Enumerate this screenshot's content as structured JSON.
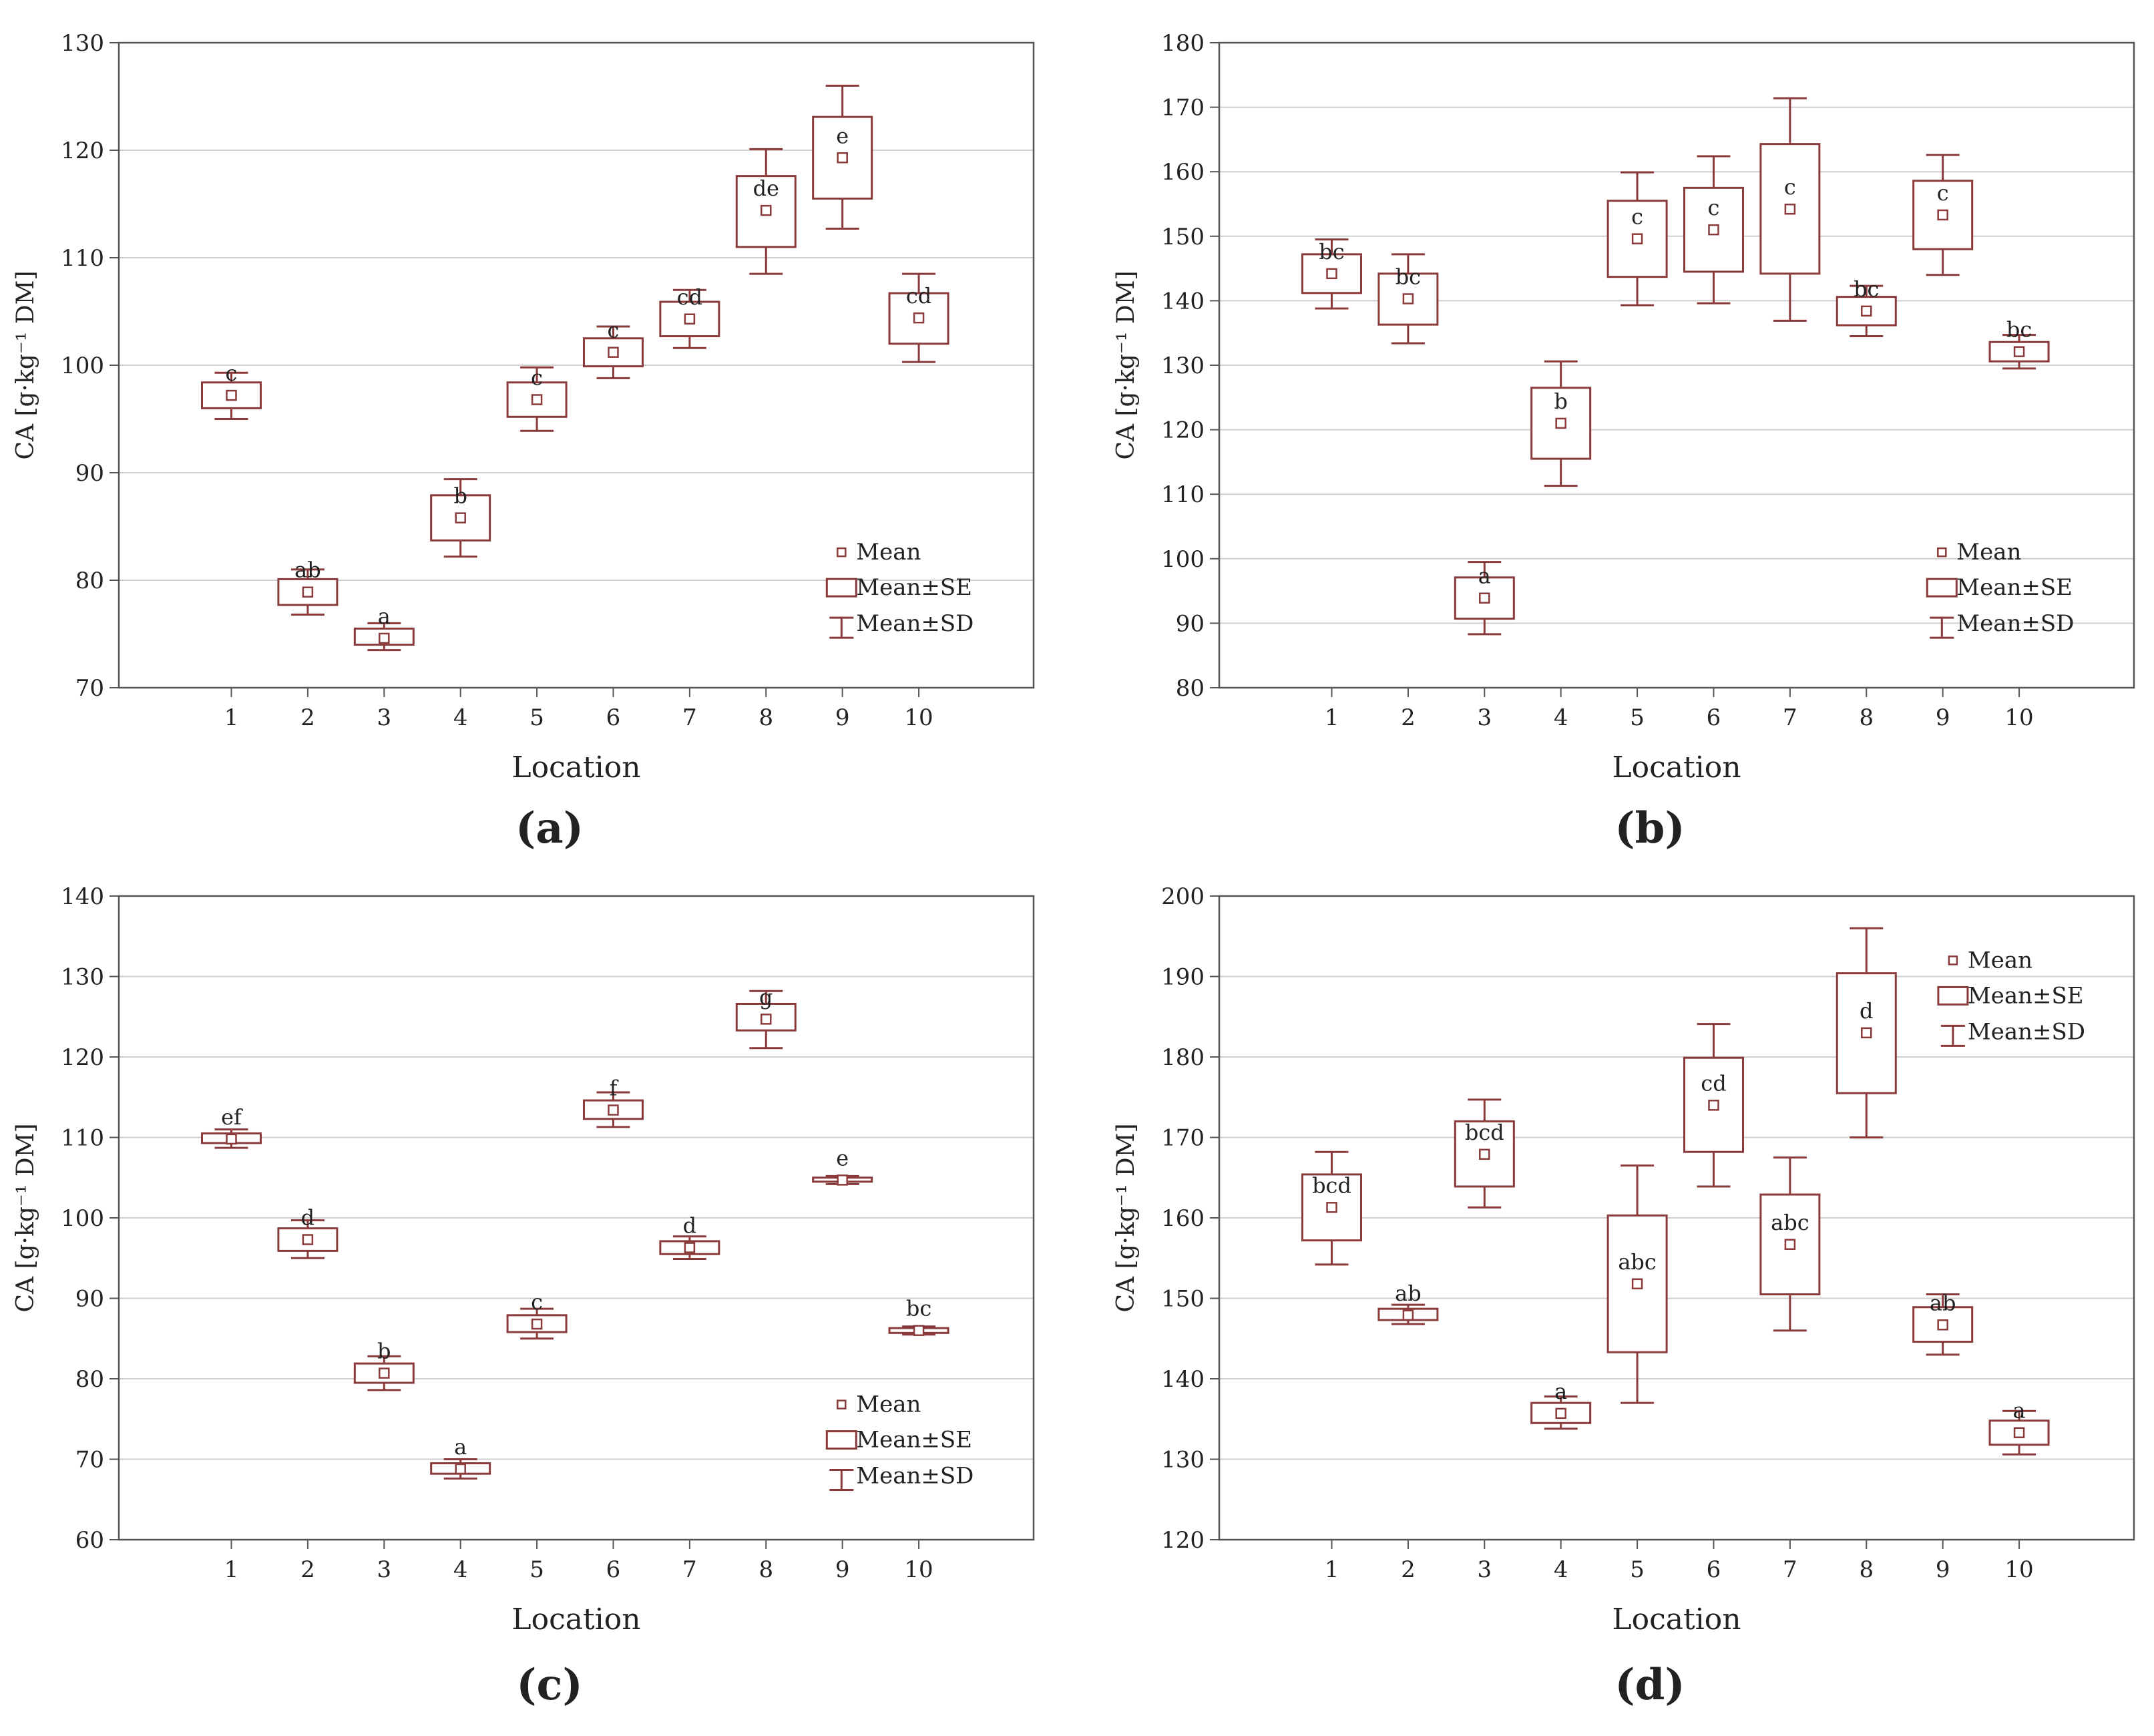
{
  "chart_data": [
    {
      "panel_label": "(a)",
      "type": "box",
      "xlabel": "Location",
      "ylabel": "CA [g·kg⁻¹ DM]",
      "ylim": [
        70,
        130
      ],
      "yticks": [
        70,
        80,
        90,
        100,
        110,
        120,
        130
      ],
      "categories": [
        "1",
        "2",
        "3",
        "4",
        "5",
        "6",
        "7",
        "8",
        "9",
        "10"
      ],
      "legend": {
        "position": "bottom-right",
        "mean": "Mean",
        "se": "Mean±SE",
        "sd": "Mean±SD"
      },
      "series": [
        {
          "x": "1",
          "mean": 97.2,
          "se_low": 96.0,
          "se_high": 98.4,
          "sd_low": 95.0,
          "sd_high": 99.3,
          "group": "c"
        },
        {
          "x": "2",
          "mean": 78.9,
          "se_low": 77.7,
          "se_high": 80.1,
          "sd_low": 76.8,
          "sd_high": 81.0,
          "group": "ab"
        },
        {
          "x": "3",
          "mean": 74.6,
          "se_low": 74.0,
          "se_high": 75.5,
          "sd_low": 73.5,
          "sd_high": 76.0,
          "group": "a"
        },
        {
          "x": "4",
          "mean": 85.8,
          "se_low": 83.7,
          "se_high": 87.9,
          "sd_low": 82.2,
          "sd_high": 89.4,
          "group": "b"
        },
        {
          "x": "5",
          "mean": 96.8,
          "se_low": 95.2,
          "se_high": 98.4,
          "sd_low": 93.9,
          "sd_high": 99.8,
          "group": "c"
        },
        {
          "x": "6",
          "mean": 101.2,
          "se_low": 99.9,
          "se_high": 102.5,
          "sd_low": 98.8,
          "sd_high": 103.6,
          "group": "c"
        },
        {
          "x": "7",
          "mean": 104.3,
          "se_low": 102.7,
          "se_high": 105.9,
          "sd_low": 101.6,
          "sd_high": 107.0,
          "group": "cd"
        },
        {
          "x": "8",
          "mean": 114.4,
          "se_low": 111.0,
          "se_high": 117.6,
          "sd_low": 108.5,
          "sd_high": 120.1,
          "group": "de"
        },
        {
          "x": "9",
          "mean": 119.3,
          "se_low": 115.5,
          "se_high": 123.1,
          "sd_low": 112.7,
          "sd_high": 126.0,
          "group": "e"
        },
        {
          "x": "10",
          "mean": 104.4,
          "se_low": 102.0,
          "se_high": 106.7,
          "sd_low": 100.3,
          "sd_high": 108.5,
          "group": "cd"
        }
      ]
    },
    {
      "panel_label": "(b)",
      "type": "box",
      "xlabel": "Location",
      "ylabel": "CA [g·kg⁻¹ DM]",
      "ylim": [
        80,
        180
      ],
      "yticks": [
        80,
        90,
        100,
        110,
        120,
        130,
        140,
        150,
        160,
        170,
        180
      ],
      "categories": [
        "1",
        "2",
        "3",
        "4",
        "5",
        "6",
        "7",
        "8",
        "9",
        "10"
      ],
      "legend": {
        "position": "bottom-right",
        "mean": "Mean",
        "se": "Mean±SE",
        "sd": "Mean±SD"
      },
      "series": [
        {
          "x": "1",
          "mean": 144.2,
          "se_low": 141.2,
          "se_high": 147.2,
          "sd_low": 138.8,
          "sd_high": 149.5,
          "group": "bc"
        },
        {
          "x": "2",
          "mean": 140.3,
          "se_low": 136.3,
          "se_high": 144.2,
          "sd_low": 133.4,
          "sd_high": 147.2,
          "group": "bc"
        },
        {
          "x": "3",
          "mean": 93.9,
          "se_low": 90.7,
          "se_high": 97.1,
          "sd_low": 88.3,
          "sd_high": 99.5,
          "group": "a"
        },
        {
          "x": "4",
          "mean": 121.0,
          "se_low": 115.5,
          "se_high": 126.5,
          "sd_low": 111.3,
          "sd_high": 130.6,
          "group": "b"
        },
        {
          "x": "5",
          "mean": 149.6,
          "se_low": 143.7,
          "se_high": 155.5,
          "sd_low": 139.3,
          "sd_high": 159.9,
          "group": "c"
        },
        {
          "x": "6",
          "mean": 151.0,
          "se_low": 144.5,
          "se_high": 157.5,
          "sd_low": 139.6,
          "sd_high": 162.4,
          "group": "c"
        },
        {
          "x": "7",
          "mean": 154.2,
          "se_low": 144.2,
          "se_high": 164.3,
          "sd_low": 136.9,
          "sd_high": 171.4,
          "group": "c"
        },
        {
          "x": "8",
          "mean": 138.4,
          "se_low": 136.2,
          "se_high": 140.6,
          "sd_low": 134.5,
          "sd_high": 142.3,
          "group": "bc"
        },
        {
          "x": "9",
          "mean": 153.3,
          "se_low": 148.0,
          "se_high": 158.6,
          "sd_low": 144.0,
          "sd_high": 162.6,
          "group": "c"
        },
        {
          "x": "10",
          "mean": 132.1,
          "se_low": 130.6,
          "se_high": 133.6,
          "sd_low": 129.5,
          "sd_high": 134.7,
          "group": "bc"
        }
      ]
    },
    {
      "panel_label": "(c)",
      "type": "box",
      "xlabel": "Location",
      "ylabel": "CA [g·kg⁻¹ DM]",
      "ylim": [
        60,
        140
      ],
      "yticks": [
        60,
        70,
        80,
        90,
        100,
        110,
        120,
        130,
        140
      ],
      "categories": [
        "1",
        "2",
        "3",
        "4",
        "5",
        "6",
        "7",
        "8",
        "9",
        "10"
      ],
      "legend": {
        "position": "bottom-right",
        "mean": "Mean",
        "se": "Mean±SE",
        "sd": "Mean±SD"
      },
      "series": [
        {
          "x": "1",
          "mean": 109.8,
          "se_low": 109.3,
          "se_high": 110.5,
          "sd_low": 108.7,
          "sd_high": 111.0,
          "group": "ef"
        },
        {
          "x": "2",
          "mean": 97.3,
          "se_low": 95.9,
          "se_high": 98.7,
          "sd_low": 95.0,
          "sd_high": 99.7,
          "group": "d"
        },
        {
          "x": "3",
          "mean": 80.7,
          "se_low": 79.5,
          "se_high": 81.9,
          "sd_low": 78.6,
          "sd_high": 82.8,
          "group": "b"
        },
        {
          "x": "4",
          "mean": 68.8,
          "se_low": 68.2,
          "se_high": 69.5,
          "sd_low": 67.6,
          "sd_high": 70.0,
          "group": "a"
        },
        {
          "x": "5",
          "mean": 86.8,
          "se_low": 85.8,
          "se_high": 87.9,
          "sd_low": 85.0,
          "sd_high": 88.7,
          "group": "c"
        },
        {
          "x": "6",
          "mean": 113.4,
          "se_low": 112.3,
          "se_high": 114.6,
          "sd_low": 111.3,
          "sd_high": 115.6,
          "group": "f"
        },
        {
          "x": "7",
          "mean": 96.3,
          "se_low": 95.5,
          "se_high": 97.1,
          "sd_low": 94.9,
          "sd_high": 97.7,
          "group": "d"
        },
        {
          "x": "8",
          "mean": 124.7,
          "se_low": 123.3,
          "se_high": 126.6,
          "sd_low": 121.1,
          "sd_high": 128.2,
          "group": "g"
        },
        {
          "x": "9",
          "mean": 104.7,
          "se_low": 104.5,
          "se_high": 105.0,
          "sd_low": 104.2,
          "sd_high": 105.2,
          "group": "e"
        },
        {
          "x": "10",
          "mean": 86.0,
          "se_low": 85.7,
          "se_high": 86.3,
          "sd_low": 85.5,
          "sd_high": 86.5,
          "group": "bc"
        }
      ]
    },
    {
      "panel_label": "(d)",
      "type": "box",
      "xlabel": "Location",
      "ylabel": "CA [g·kg⁻¹ DM]",
      "ylim": [
        120,
        200
      ],
      "yticks": [
        120,
        130,
        140,
        150,
        160,
        170,
        180,
        190,
        200
      ],
      "categories": [
        "1",
        "2",
        "3",
        "4",
        "5",
        "6",
        "7",
        "8",
        "9",
        "10"
      ],
      "legend": {
        "position": "top-right",
        "mean": "Mean",
        "se": "Mean±SE",
        "sd": "Mean±SD"
      },
      "series": [
        {
          "x": "1",
          "mean": 161.3,
          "se_low": 157.2,
          "se_high": 165.4,
          "sd_low": 154.2,
          "sd_high": 168.2,
          "group": "bcd"
        },
        {
          "x": "2",
          "mean": 147.9,
          "se_low": 147.3,
          "se_high": 148.7,
          "sd_low": 146.8,
          "sd_high": 149.2,
          "group": "ab"
        },
        {
          "x": "3",
          "mean": 167.9,
          "se_low": 163.9,
          "se_high": 172.0,
          "sd_low": 161.3,
          "sd_high": 174.7,
          "group": "bcd"
        },
        {
          "x": "4",
          "mean": 135.7,
          "se_low": 134.5,
          "se_high": 137.0,
          "sd_low": 133.8,
          "sd_high": 137.8,
          "group": "a"
        },
        {
          "x": "5",
          "mean": 151.8,
          "se_low": 143.3,
          "se_high": 160.3,
          "sd_low": 137.0,
          "sd_high": 166.5,
          "group": "abc"
        },
        {
          "x": "6",
          "mean": 174.0,
          "se_low": 168.2,
          "se_high": 179.9,
          "sd_low": 163.9,
          "sd_high": 184.1,
          "group": "cd"
        },
        {
          "x": "7",
          "mean": 156.7,
          "se_low": 150.5,
          "se_high": 162.9,
          "sd_low": 146.0,
          "sd_high": 167.5,
          "group": "abc"
        },
        {
          "x": "8",
          "mean": 183.0,
          "se_low": 175.5,
          "se_high": 190.4,
          "sd_low": 170.0,
          "sd_high": 196.0,
          "group": "d"
        },
        {
          "x": "9",
          "mean": 146.7,
          "se_low": 144.6,
          "se_high": 148.9,
          "sd_low": 143.0,
          "sd_high": 150.5,
          "group": "ab"
        },
        {
          "x": "10",
          "mean": 133.3,
          "se_low": 131.8,
          "se_high": 134.8,
          "sd_low": 130.6,
          "sd_high": 136.0,
          "group": "a"
        }
      ]
    }
  ]
}
